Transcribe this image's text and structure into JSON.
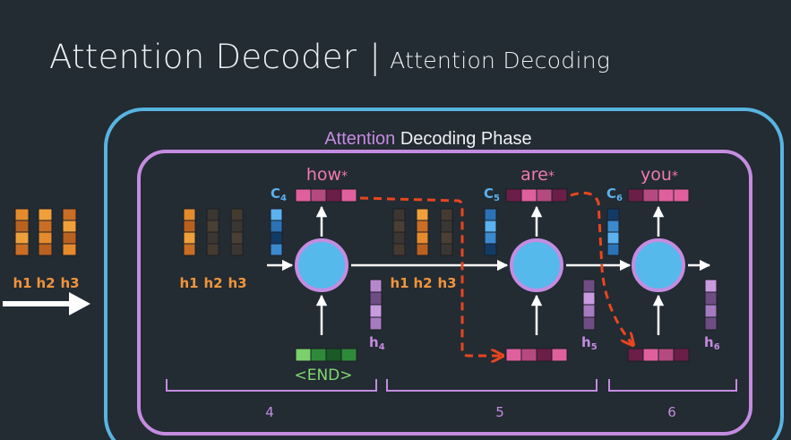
{
  "title": {
    "main": "Attention Decoder",
    "separator": "|",
    "sub": "Attention Decoding"
  },
  "phase_title": {
    "attention": "Attention",
    "rest": "Decoding Phase"
  },
  "encoder": {
    "labels": [
      "h1",
      "h2",
      "h3"
    ]
  },
  "steps": [
    {
      "word": "how",
      "star": "*",
      "c_base": "C",
      "c_sub": "4",
      "h_base": "h",
      "h_sub": "4",
      "hidden_labels": [
        "h1",
        "h2",
        "h3"
      ],
      "input": "<END>",
      "timestep": "4"
    },
    {
      "word": "are",
      "star": "*",
      "c_base": "C",
      "c_sub": "5",
      "h_base": "h",
      "h_sub": "5",
      "hidden_labels": [
        "h1",
        "h2",
        "h3"
      ],
      "timestep": "5"
    },
    {
      "word": "you",
      "star": "*",
      "c_base": "C",
      "c_sub": "6",
      "h_base": "h",
      "h_sub": "6",
      "timestep": "6"
    }
  ],
  "colors": {
    "background": "#232b33",
    "outer_box": "#58b4e0",
    "inner_box": "#c48ce0",
    "node_fill": "#56b9ec",
    "node_stroke": "#c48ce0",
    "orange_label": "#f0943a",
    "pink_label": "#f07ab0",
    "purple_label": "#c48ce0",
    "blue_label": "#5ab2f0",
    "green_label": "#80d870",
    "feedback_arrow": "#e8461e",
    "arrow": "#ffffff"
  }
}
